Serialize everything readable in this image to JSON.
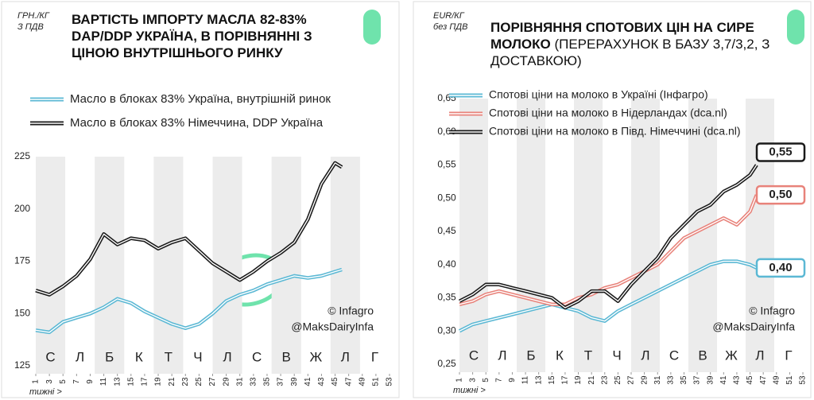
{
  "chart_data": [
    {
      "type": "line",
      "title_lines": [
        "ВАРТІСТЬ ІМПОРТУ МАСЛА 82-83%",
        "DAP/DDP УКРАЇНА, В ПОРІВНЯННІ З",
        "ЦІНОЮ ВНУТРІШНЬОГО РИНКУ"
      ],
      "unit_lines": [
        "ГРН./КГ",
        "З ПДВ"
      ],
      "x_label": "тижні >",
      "annotations": [
        "© Infagro",
        "@MaksDairyInfa"
      ],
      "month_labels": [
        "С",
        "Л",
        "Б",
        "К",
        "Т",
        "Ч",
        "Л",
        "С",
        "В",
        "Ж",
        "Л",
        "Г"
      ],
      "x": [
        1,
        3,
        5,
        7,
        9,
        11,
        13,
        15,
        17,
        19,
        21,
        23,
        25,
        27,
        29,
        31,
        33,
        35,
        37,
        39,
        41,
        43,
        45,
        46
      ],
      "series": [
        {
          "name": "Масло в блоках 83% Україна, внутрішній ринок",
          "color": "#5bb8d4",
          "values": [
            142,
            141,
            146,
            148,
            150,
            153,
            157,
            155,
            151,
            148,
            145,
            143,
            145,
            150,
            156,
            159,
            161,
            164,
            166,
            168,
            167,
            168,
            170,
            171
          ]
        },
        {
          "name": "Масло в блоках 83% Німеччина, DDP Україна",
          "color": "#1a1a1a",
          "values": [
            161,
            159,
            163,
            168,
            176,
            188,
            183,
            186,
            185,
            181,
            184,
            186,
            180,
            174,
            170,
            166,
            170,
            175,
            179,
            184,
            195,
            212,
            222,
            220
          ]
        }
      ],
      "xlim": [
        1,
        53
      ],
      "xticks": [
        1,
        3,
        5,
        7,
        9,
        11,
        13,
        15,
        17,
        19,
        21,
        23,
        25,
        27,
        29,
        31,
        33,
        35,
        37,
        39,
        41,
        43,
        45,
        47,
        49,
        51,
        53
      ],
      "ylim": [
        125,
        225
      ],
      "yticks": [
        125,
        150,
        175,
        200,
        225
      ]
    },
    {
      "type": "line",
      "title": "ПОРІВНЯННЯ СПОТОВИХ ЦІН НА СИРЕ МОЛОКО",
      "subtitle": "(ПЕРЕРАХУНОК В БАЗУ 3,7/3,2, З ДОСТАВКОЮ)",
      "unit_lines": [
        "EUR/КГ",
        "без ПДВ"
      ],
      "x_label": "тижні >",
      "annotations": [
        "© Infagro",
        "@MaksDairyInfa"
      ],
      "month_labels": [
        "С",
        "Л",
        "Б",
        "К",
        "Т",
        "Ч",
        "Л",
        "С",
        "В",
        "Ж",
        "Л",
        "Г"
      ],
      "x": [
        1,
        3,
        5,
        7,
        9,
        11,
        13,
        15,
        17,
        19,
        21,
        23,
        25,
        27,
        29,
        31,
        33,
        35,
        37,
        39,
        41,
        43,
        45,
        46
      ],
      "series": [
        {
          "name": "Спотові ціни на молоко в Україні (Інфагро)",
          "color": "#5bb8d4",
          "last_label": "0,40",
          "values": [
            0.3,
            0.31,
            0.315,
            0.32,
            0.325,
            0.33,
            0.335,
            0.34,
            0.335,
            0.33,
            0.32,
            0.315,
            0.33,
            0.34,
            0.35,
            0.36,
            0.37,
            0.38,
            0.39,
            0.4,
            0.405,
            0.405,
            0.4,
            0.395
          ]
        },
        {
          "name": "Спотові ціни на молоко в Нідерландах (dca.nl)",
          "color": "#e8827a",
          "last_label": "0,50",
          "values": [
            0.34,
            0.345,
            0.355,
            0.36,
            0.355,
            0.35,
            0.345,
            0.34,
            0.34,
            0.35,
            0.355,
            0.365,
            0.37,
            0.38,
            0.39,
            0.4,
            0.42,
            0.44,
            0.45,
            0.46,
            0.47,
            0.46,
            0.48,
            0.505
          ]
        },
        {
          "name": "Спотові ціни на молоко в Півд. Німеччині (dca.nl)",
          "color": "#1a1a1a",
          "last_label": "0,55",
          "values": [
            0.345,
            0.355,
            0.37,
            0.37,
            0.365,
            0.36,
            0.355,
            0.35,
            0.335,
            0.345,
            0.36,
            0.36,
            0.345,
            0.37,
            0.39,
            0.41,
            0.44,
            0.46,
            0.48,
            0.49,
            0.51,
            0.52,
            0.535,
            0.55
          ]
        }
      ],
      "xlim": [
        1,
        53
      ],
      "xticks": [
        1,
        3,
        5,
        7,
        9,
        11,
        13,
        15,
        17,
        19,
        21,
        23,
        25,
        27,
        29,
        31,
        33,
        35,
        37,
        39,
        41,
        43,
        45,
        47,
        49,
        51,
        53
      ],
      "ylim": [
        0.25,
        0.65
      ],
      "yticks": [
        {
          "value": 0.25,
          "label": "0,25"
        },
        {
          "value": 0.3,
          "label": "0,30"
        },
        {
          "value": 0.35,
          "label": "0,35"
        },
        {
          "value": 0.4,
          "label": "0,40"
        },
        {
          "value": 0.45,
          "label": "0,45"
        },
        {
          "value": 0.5,
          "label": "0,50"
        },
        {
          "value": 0.55,
          "label": "0,55"
        },
        {
          "value": 0.6,
          "label": "0,60"
        },
        {
          "value": 0.65,
          "label": "0,65"
        }
      ]
    }
  ]
}
